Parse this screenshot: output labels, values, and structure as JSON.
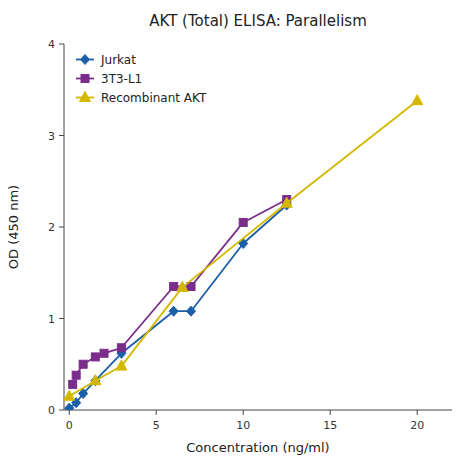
{
  "chart_data": {
    "type": "line",
    "title": "AKT (Total) ELISA: Parallelism",
    "x_label": "Concentration (ng/ml)",
    "y_label": "OD (450 nm)",
    "xlim": [
      -0.3,
      22
    ],
    "ylim": [
      0,
      4
    ],
    "xticks": [
      0,
      5,
      10,
      15,
      20
    ],
    "yticks": [
      0,
      1,
      2,
      3,
      4
    ],
    "grid": false,
    "legend": "upper left",
    "series": [
      {
        "name": "Jurkat",
        "color": "#1a5fa8",
        "marker": "diamond",
        "x": [
          0.0,
          0.4,
          0.8,
          1.5,
          3.0,
          6.0,
          7.0,
          10.0,
          12.5
        ],
        "values": [
          0.02,
          0.08,
          0.18,
          0.32,
          0.62,
          1.08,
          1.08,
          1.82,
          2.24
        ]
      },
      {
        "name": "3T3-L1",
        "color": "#7b2d8b",
        "marker": "square",
        "x": [
          0.2,
          0.4,
          0.8,
          1.5,
          2.0,
          3.0,
          6.0,
          7.0,
          10.0,
          12.5
        ],
        "values": [
          0.28,
          0.38,
          0.5,
          0.58,
          0.62,
          0.68,
          1.35,
          1.35,
          2.05,
          2.3
        ]
      },
      {
        "name": "Recombinant AKT",
        "color": "#d4b800",
        "marker": "triangle",
        "x": [
          0.0,
          1.5,
          3.0,
          6.5,
          12.5,
          20.0
        ],
        "values": [
          0.15,
          0.32,
          0.48,
          1.34,
          2.26,
          3.38
        ]
      }
    ]
  }
}
